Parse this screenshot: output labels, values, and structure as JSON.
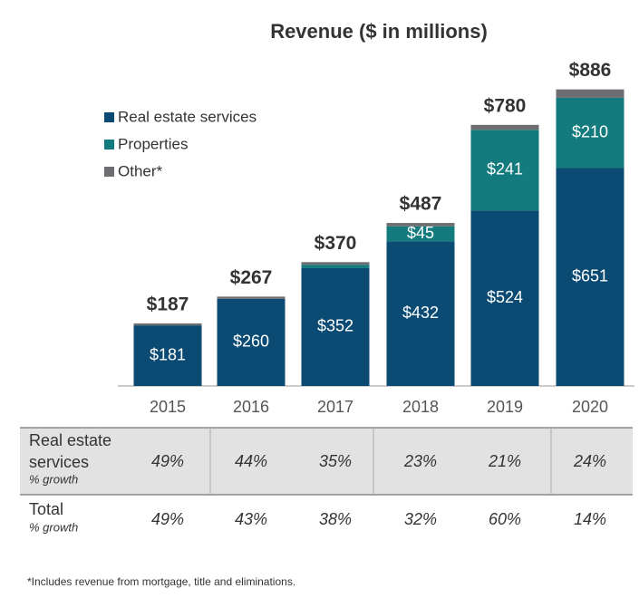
{
  "chart_data": {
    "type": "stacked_bar",
    "title": "Revenue ($ in millions)",
    "categories": [
      "2015",
      "2016",
      "2017",
      "2018",
      "2019",
      "2020"
    ],
    "series": [
      {
        "name": "Real estate services",
        "color": "#0b4a72",
        "values": [
          181,
          260,
          352,
          432,
          524,
          651
        ],
        "value_labels": [
          "$181",
          "$260",
          "$352",
          "$432",
          "$524",
          "$651"
        ]
      },
      {
        "name": "Properties",
        "color": "#137a7e",
        "values": [
          0,
          0,
          10,
          45,
          241,
          210
        ],
        "value_labels": [
          null,
          null,
          null,
          "$45",
          "$241",
          "$210"
        ]
      },
      {
        "name": "Other*",
        "color": "#6d6e71",
        "values": [
          6,
          7,
          8,
          10,
          15,
          25
        ],
        "value_labels": [
          null,
          null,
          null,
          null,
          null,
          null
        ]
      }
    ],
    "totals": [
      187,
      267,
      370,
      487,
      780,
      886
    ],
    "total_labels": [
      "$187",
      "$267",
      "$370",
      "$487",
      "$780",
      "$886"
    ],
    "ylim": [
      0,
      950
    ],
    "legend": "top-left"
  },
  "table": {
    "rows": [
      {
        "label": [
          "Real estate",
          "services"
        ],
        "sublabel": "% growth",
        "values": [
          "49%",
          "44%",
          "35%",
          "23%",
          "21%",
          "24%"
        ]
      },
      {
        "label": [
          "Total"
        ],
        "sublabel": "% growth",
        "values": [
          "49%",
          "43%",
          "38%",
          "32%",
          "60%",
          "14%"
        ]
      }
    ]
  },
  "footnote": "*Includes revenue from mortgage, title and eliminations."
}
